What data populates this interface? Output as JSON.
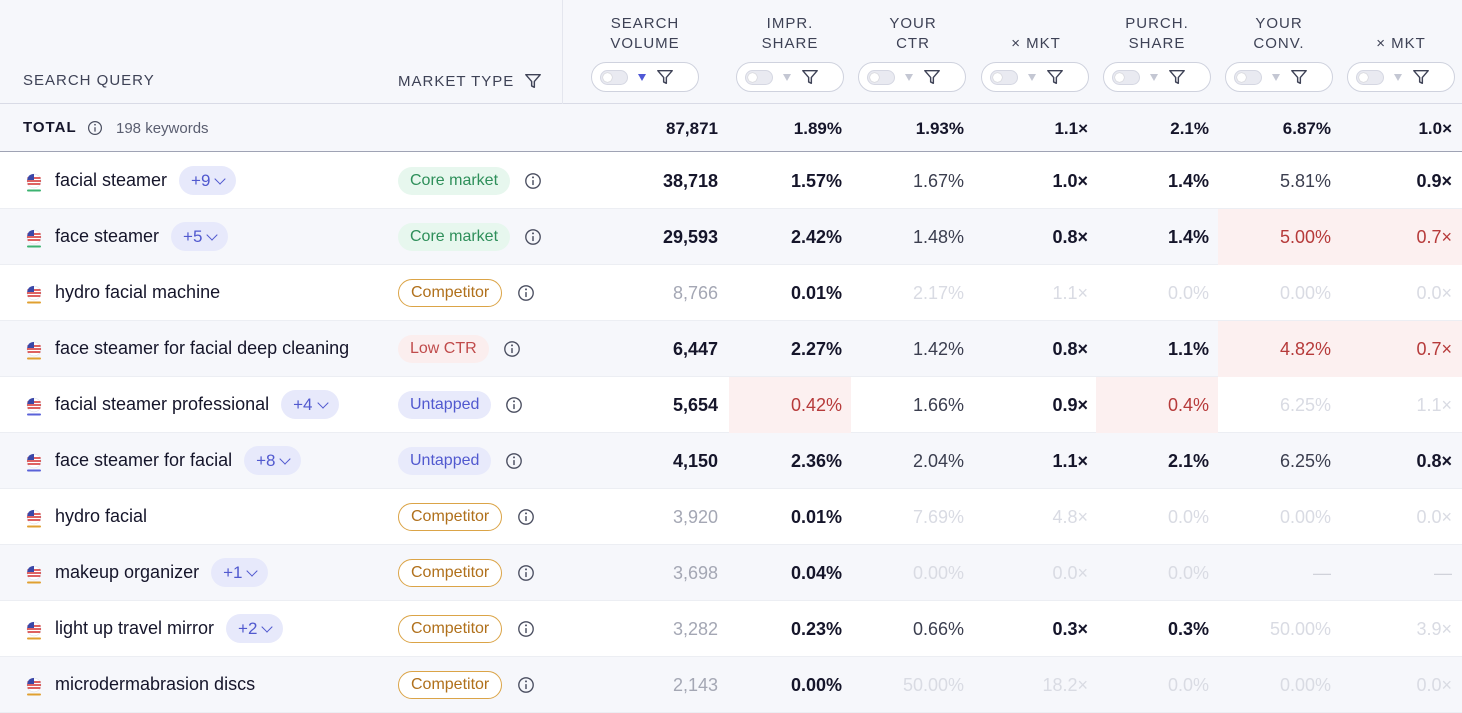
{
  "header": {
    "search_query": "SEARCH QUERY",
    "market_type": "MARKET TYPE",
    "columns": [
      {
        "line1": "SEARCH",
        "line2": "VOLUME"
      },
      {
        "line1": "IMPR.",
        "line2": "SHARE"
      },
      {
        "line1": "YOUR",
        "line2": "CTR"
      },
      {
        "line1": "",
        "line2": "× MKT"
      },
      {
        "line1": "PURCH.",
        "line2": "SHARE"
      },
      {
        "line1": "YOUR",
        "line2": "CONV."
      },
      {
        "line1": "",
        "line2": "× MKT"
      }
    ]
  },
  "total": {
    "label": "TOTAL",
    "keywords": "198 keywords",
    "values": [
      "87,871",
      "1.89%",
      "1.93%",
      "1.1×",
      "2.1%",
      "6.87%",
      "1.0×"
    ]
  },
  "rows": [
    {
      "query": "facial steamer",
      "plus": "+9",
      "badge": "Core market",
      "badge_type": "core",
      "values": [
        "38,718",
        "1.57%",
        "1.67%",
        "1.0×",
        "1.4%",
        "5.81%",
        "0.9×"
      ],
      "styles": [
        "bold",
        "bold",
        "norm",
        "bold",
        "bold",
        "norm",
        "bold"
      ]
    },
    {
      "query": "face steamer",
      "plus": "+5",
      "badge": "Core market",
      "badge_type": "core",
      "values": [
        "29,593",
        "2.42%",
        "1.48%",
        "0.8×",
        "1.4%",
        "5.00%",
        "0.7×"
      ],
      "styles": [
        "bold",
        "bold",
        "norm",
        "bold",
        "bold",
        "red redbg",
        "red redbg"
      ]
    },
    {
      "query": "hydro facial machine",
      "plus": "",
      "badge": "Competitor",
      "badge_type": "comp",
      "values": [
        "8,766",
        "0.01%",
        "2.17%",
        "1.1×",
        "0.0%",
        "0.00%",
        "0.0×"
      ],
      "styles": [
        "muted",
        "bold",
        "faint",
        "faint",
        "faint",
        "faint",
        "faint"
      ]
    },
    {
      "query": "face steamer for facial deep cleaning",
      "plus": "",
      "badge": "Low CTR",
      "badge_type": "low",
      "values": [
        "6,447",
        "2.27%",
        "1.42%",
        "0.8×",
        "1.1%",
        "4.82%",
        "0.7×"
      ],
      "styles": [
        "bold",
        "bold",
        "norm",
        "bold",
        "bold",
        "red redbg",
        "red redbg"
      ]
    },
    {
      "query": "facial steamer professional",
      "plus": "+4",
      "badge": "Untapped",
      "badge_type": "untap",
      "values": [
        "5,654",
        "0.42%",
        "1.66%",
        "0.9×",
        "0.4%",
        "6.25%",
        "1.1×"
      ],
      "styles": [
        "bold",
        "red redbg",
        "norm",
        "bold",
        "red redbg",
        "faint",
        "faint"
      ]
    },
    {
      "query": "face steamer for facial",
      "plus": "+8",
      "badge": "Untapped",
      "badge_type": "untap",
      "values": [
        "4,150",
        "2.36%",
        "2.04%",
        "1.1×",
        "2.1%",
        "6.25%",
        "0.8×"
      ],
      "styles": [
        "bold",
        "bold",
        "norm",
        "bold",
        "bold",
        "norm",
        "bold"
      ]
    },
    {
      "query": "hydro facial",
      "plus": "",
      "badge": "Competitor",
      "badge_type": "comp",
      "values": [
        "3,920",
        "0.01%",
        "7.69%",
        "4.8×",
        "0.0%",
        "0.00%",
        "0.0×"
      ],
      "styles": [
        "muted",
        "bold",
        "faint",
        "faint",
        "faint",
        "faint",
        "faint"
      ]
    },
    {
      "query": "makeup organizer",
      "plus": "+1",
      "badge": "Competitor",
      "badge_type": "comp",
      "values": [
        "3,698",
        "0.04%",
        "0.00%",
        "0.0×",
        "0.0%",
        "—",
        "—"
      ],
      "styles": [
        "muted",
        "bold",
        "faint",
        "faint",
        "faint",
        "faint",
        "faint"
      ]
    },
    {
      "query": "light up travel mirror",
      "plus": "+2",
      "badge": "Competitor",
      "badge_type": "comp",
      "values": [
        "3,282",
        "0.23%",
        "0.66%",
        "0.3×",
        "0.3%",
        "50.00%",
        "3.9×"
      ],
      "styles": [
        "muted",
        "bold",
        "norm",
        "bold",
        "bold",
        "faint",
        "faint"
      ]
    },
    {
      "query": "microdermabrasion discs",
      "plus": "",
      "badge": "Competitor",
      "badge_type": "comp",
      "values": [
        "2,143",
        "0.00%",
        "50.00%",
        "18.2×",
        "0.0%",
        "0.00%",
        "0.0×"
      ],
      "styles": [
        "muted",
        "bold",
        "faint",
        "faint",
        "faint",
        "faint",
        "faint"
      ]
    }
  ]
}
